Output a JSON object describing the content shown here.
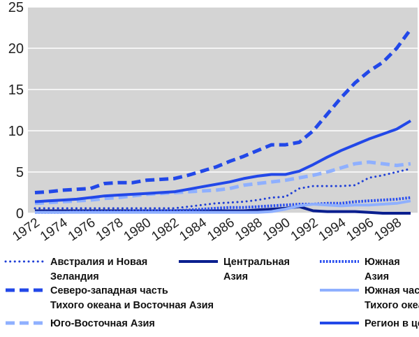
{
  "chart_data": {
    "type": "line",
    "title": "",
    "xlabel": "",
    "ylabel": "",
    "xlim": [
      1971.5,
      1999.5
    ],
    "ylim": [
      0,
      25
    ],
    "yticks": [
      0,
      5,
      10,
      15,
      20,
      25
    ],
    "xticks": [
      1972,
      1974,
      1976,
      1978,
      1980,
      1982,
      1984,
      1986,
      1988,
      1990,
      1992,
      1994,
      1996,
      1998
    ],
    "grid": "horizontal",
    "plot_background": "#d4d4d4",
    "legend_position": "bottom",
    "x": [
      1972,
      1973,
      1974,
      1975,
      1976,
      1977,
      1978,
      1979,
      1980,
      1981,
      1982,
      1983,
      1984,
      1985,
      1986,
      1987,
      1988,
      1989,
      1990,
      1991,
      1992,
      1993,
      1994,
      1995,
      1996,
      1997,
      1998,
      1999
    ],
    "series": [
      {
        "name": [
          "Австралия и Новая",
          "Зеландия"
        ],
        "color": "#1f3fd6",
        "dash": "dotted",
        "width": 3,
        "values": [
          0.6,
          0.6,
          0.6,
          0.6,
          0.6,
          0.6,
          0.6,
          0.6,
          0.6,
          0.6,
          0.6,
          0.8,
          1.0,
          1.2,
          1.3,
          1.4,
          1.6,
          1.9,
          2.0,
          3.0,
          3.3,
          3.3,
          3.3,
          3.4,
          4.3,
          4.6,
          5.0,
          5.4
        ]
      },
      {
        "name": [
          "Центральная",
          "Азия"
        ],
        "color": "#0a1f8f",
        "dash": "solid",
        "width": 4,
        "values": [
          0.3,
          0.3,
          0.3,
          0.3,
          0.3,
          0.3,
          0.3,
          0.3,
          0.3,
          0.3,
          0.3,
          0.3,
          0.3,
          0.3,
          0.3,
          0.3,
          0.4,
          0.5,
          0.6,
          0.8,
          0.3,
          0.2,
          0.2,
          0.2,
          0.1,
          0.0,
          0.0,
          0.0
        ]
      },
      {
        "name": [
          "Южная",
          "Азия"
        ],
        "color": "#2a4ff0",
        "dash": "dense-dot",
        "width": 4,
        "values": [
          0.1,
          0.1,
          0.1,
          0.2,
          0.2,
          0.2,
          0.2,
          0.3,
          0.3,
          0.3,
          0.3,
          0.4,
          0.5,
          0.6,
          0.7,
          0.7,
          0.8,
          0.9,
          1.0,
          1.1,
          1.1,
          1.2,
          1.2,
          1.4,
          1.5,
          1.6,
          1.7,
          1.9
        ]
      },
      {
        "name": [
          "Северо-западная часть",
          "Тихого океана и Восточная Азия"
        ],
        "color": "#2248e8",
        "dash": "dashed",
        "width": 5,
        "values": [
          2.5,
          2.6,
          2.8,
          2.9,
          3.0,
          3.6,
          3.7,
          3.7,
          4.0,
          4.1,
          4.2,
          4.6,
          5.1,
          5.6,
          6.3,
          6.9,
          7.6,
          8.3,
          8.3,
          8.6,
          10.0,
          12.0,
          14.0,
          15.8,
          17.2,
          18.3,
          20.0,
          22.3
        ]
      },
      {
        "name": [
          "Южная часть",
          "Тихого океана"
        ],
        "color": "#8fb0ff",
        "dash": "solid",
        "width": 4,
        "values": [
          0.1,
          0.1,
          0.1,
          0.1,
          0.1,
          0.1,
          0.1,
          0.1,
          0.1,
          0.1,
          0.1,
          0.1,
          0.1,
          0.1,
          0.1,
          0.1,
          0.1,
          0.2,
          0.5,
          0.9,
          1.1,
          1.0,
          0.9,
          1.0,
          1.0,
          1.1,
          1.2,
          1.5
        ]
      },
      {
        "name": [
          "Юго-Восточная Азия"
        ],
        "color": "#8fb0ff",
        "dash": "dashed",
        "width": 5,
        "values": [
          1.2,
          1.3,
          1.4,
          1.5,
          1.6,
          1.8,
          1.9,
          2.1,
          2.3,
          2.4,
          2.5,
          2.6,
          2.7,
          2.8,
          3.0,
          3.4,
          3.6,
          3.8,
          4.0,
          4.3,
          4.6,
          5.0,
          5.5,
          6.0,
          6.2,
          6.0,
          5.8,
          6.0
        ]
      },
      {
        "name": [
          "Регион в целом"
        ],
        "color": "#2248e8",
        "dash": "solid",
        "width": 4,
        "values": [
          1.4,
          1.5,
          1.6,
          1.7,
          1.9,
          2.1,
          2.2,
          2.3,
          2.4,
          2.5,
          2.6,
          2.9,
          3.2,
          3.5,
          3.8,
          4.2,
          4.5,
          4.7,
          4.7,
          5.1,
          5.9,
          6.8,
          7.6,
          8.3,
          9.0,
          9.6,
          10.2,
          11.2
        ]
      }
    ]
  }
}
